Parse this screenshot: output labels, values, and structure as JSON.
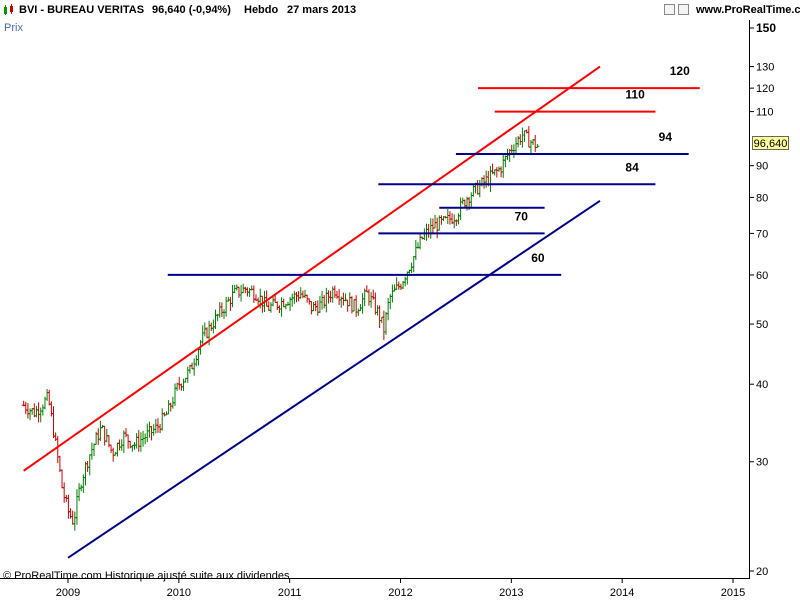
{
  "header": {
    "title": "BVI - BUREAU VERITAS",
    "price": "96,640 (-0,94%)",
    "period": "Hebdo",
    "date": "27 mars 2013",
    "site": "www.ProRealTime.com"
  },
  "y_axis_name": "Prix",
  "last_value_label": "96,640",
  "copyright": "© ProRealTime.com Historique ajusté suite aux dividendes",
  "colors": {
    "up": "#008000",
    "down": "#cc0000",
    "resistance": "#ff0000",
    "support": "#00008b",
    "last_value_bg": "#ffff99"
  },
  "chart_data": {
    "type": "line",
    "scale": "log",
    "ylim": [
      20,
      150
    ],
    "xlim": [
      2008.6,
      2015.1
    ],
    "y_ticks": [
      20,
      30,
      40,
      50,
      60,
      70,
      80,
      90,
      110,
      120,
      130,
      150
    ],
    "x_ticks": [
      "2009",
      "2010",
      "2011",
      "2012",
      "2013",
      "2014",
      "2015"
    ],
    "price_series": {
      "name": "BVI - BUREAU VERITAS",
      "x": [
        2008.6,
        2008.7,
        2008.82,
        2008.9,
        2008.95,
        2009.0,
        2009.05,
        2009.12,
        2009.2,
        2009.3,
        2009.4,
        2009.5,
        2009.6,
        2009.7,
        2009.8,
        2009.9,
        2010.0,
        2010.1,
        2010.2,
        2010.3,
        2010.4,
        2010.5,
        2010.6,
        2010.7,
        2010.8,
        2010.9,
        2011.0,
        2011.1,
        2011.2,
        2011.3,
        2011.4,
        2011.5,
        2011.6,
        2011.7,
        2011.8,
        2011.85,
        2011.9,
        2012.0,
        2012.1,
        2012.2,
        2012.3,
        2012.4,
        2012.5,
        2012.6,
        2012.7,
        2012.8,
        2012.9,
        2013.0,
        2013.1,
        2013.15,
        2013.24
      ],
      "y": [
        37,
        36,
        38,
        31,
        27,
        25,
        24,
        28,
        31,
        34,
        31,
        33,
        32,
        33,
        34,
        36,
        40,
        42,
        47,
        50,
        53,
        56,
        57,
        56,
        53,
        54,
        55,
        56,
        53,
        54,
        57,
        55,
        53,
        56,
        52,
        49,
        55,
        58,
        63,
        69,
        72,
        73,
        75,
        80,
        83,
        86,
        89,
        96,
        101,
        99,
        96.64
      ]
    },
    "resistance_line": {
      "name": "",
      "x": [
        2008.6,
        2013.8
      ],
      "y": [
        29,
        130
      ]
    },
    "support_line": {
      "name": "",
      "x": [
        2009.0,
        2013.8
      ],
      "y": [
        21,
        79
      ]
    },
    "levels": [
      {
        "label": "120",
        "value": 120,
        "x_from": 2012.7,
        "x_to": 2014.7,
        "color": "#ff0000"
      },
      {
        "label": "110",
        "value": 110,
        "x_from": 2012.85,
        "x_to": 2014.3,
        "color": "#ff0000"
      },
      {
        "label": "94",
        "value": 94,
        "x_from": 2012.5,
        "x_to": 2014.6,
        "color": "#00008b"
      },
      {
        "label": "84",
        "value": 84,
        "x_from": 2011.8,
        "x_to": 2014.3,
        "color": "#00008b"
      },
      {
        "label": "",
        "value": 77,
        "x_from": 2012.35,
        "x_to": 2013.3,
        "color": "#00008b"
      },
      {
        "label": "70",
        "value": 70,
        "x_from": 2011.8,
        "x_to": 2013.3,
        "color": "#00008b"
      },
      {
        "label": "60",
        "value": 60,
        "x_from": 2009.9,
        "x_to": 2013.45,
        "color": "#00008b"
      }
    ]
  }
}
